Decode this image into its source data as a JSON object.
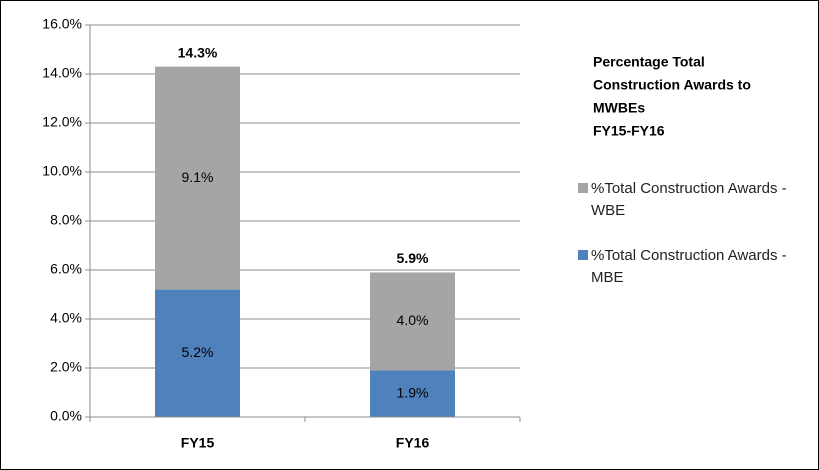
{
  "chart_data": {
    "type": "stacked_bar",
    "title": [
      "Percentage Total",
      "Construction  Awards to",
      "MWBEs",
      "FY15-FY16"
    ],
    "categories": [
      "FY15",
      "FY16"
    ],
    "series": [
      {
        "name": "%Total Construction Awards - MBE",
        "color": "#4f81bd",
        "values": [
          5.2,
          1.9
        ],
        "value_labels": [
          "5.2%",
          "1.9%"
        ]
      },
      {
        "name": "%Total Construction Awards - WBE",
        "color": "#a5a5a5",
        "values": [
          9.1,
          4.0
        ],
        "value_labels": [
          "9.1%",
          "4.0%"
        ]
      }
    ],
    "annotations": [
      "14.3%",
      "5.9%"
    ],
    "ylim": [
      0,
      16
    ],
    "yticks": [
      {
        "value": 0,
        "label": "0.0%"
      },
      {
        "value": 2,
        "label": "2.0%"
      },
      {
        "value": 4,
        "label": "4.0%"
      },
      {
        "value": 6,
        "label": "6.0%"
      },
      {
        "value": 8,
        "label": "8.0%"
      },
      {
        "value": 10,
        "label": "10.0%"
      },
      {
        "value": 12,
        "label": "12.0%"
      },
      {
        "value": 14,
        "label": "14.0%"
      },
      {
        "value": 16,
        "label": "16.0%"
      }
    ],
    "grid": true
  }
}
